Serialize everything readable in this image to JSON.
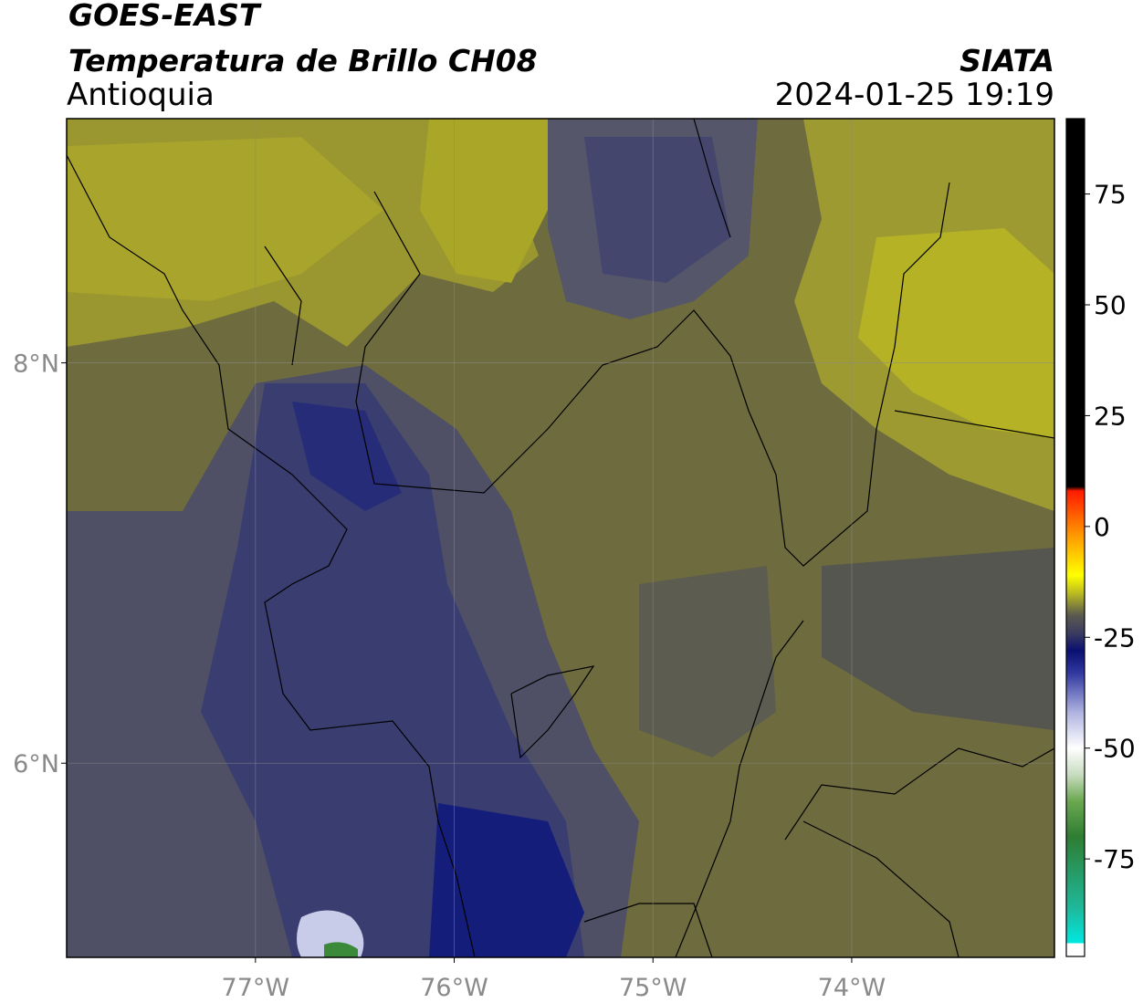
{
  "title": "GOES-EAST",
  "subtitle": "Temperatura de Brillo CH08",
  "region": "Antioquia",
  "source": "SIATA",
  "datetime": "2024-01-25 19:19",
  "map": {
    "xlim": [
      -77.95,
      -72.98
    ],
    "ylim": [
      5.03,
      9.22
    ],
    "xticks": [
      {
        "value": -77,
        "label": "77°W"
      },
      {
        "value": -76,
        "label": "76°W"
      },
      {
        "value": -75,
        "label": "75°W"
      },
      {
        "value": -74,
        "label": "74°W"
      }
    ],
    "yticks": [
      {
        "value": 6,
        "label": "6°N"
      },
      {
        "value": 8,
        "label": "8°N"
      }
    ],
    "grid": true
  },
  "colorbar": {
    "lim": [
      -97,
      92
    ],
    "ticks": [
      -75,
      -50,
      -25,
      0,
      25,
      50,
      75
    ],
    "colormap": [
      {
        "value": -97,
        "color": "#ffffff"
      },
      {
        "value": -94,
        "color": "#ffffff"
      },
      {
        "value": -94,
        "color": "#00e8e0"
      },
      {
        "value": -86,
        "color": "#1fb89a"
      },
      {
        "value": -70,
        "color": "#2e7d32"
      },
      {
        "value": -62,
        "color": "#6aa84f"
      },
      {
        "value": -56,
        "color": "#c8dcc0"
      },
      {
        "value": -50,
        "color": "#ffffff"
      },
      {
        "value": -42,
        "color": "#b0b4e0"
      },
      {
        "value": -33,
        "color": "#3038a0"
      },
      {
        "value": -28,
        "color": "#0a1070"
      },
      {
        "value": -24,
        "color": "#3c3c60"
      },
      {
        "value": -20,
        "color": "#5a5a50"
      },
      {
        "value": -15,
        "color": "#bcbc20"
      },
      {
        "value": -11,
        "color": "#ffff00"
      },
      {
        "value": -2,
        "color": "#ff9900"
      },
      {
        "value": 8,
        "color": "#ff1a00"
      },
      {
        "value": 9,
        "color": "#000000"
      },
      {
        "value": 92,
        "color": "#000000"
      }
    ]
  }
}
